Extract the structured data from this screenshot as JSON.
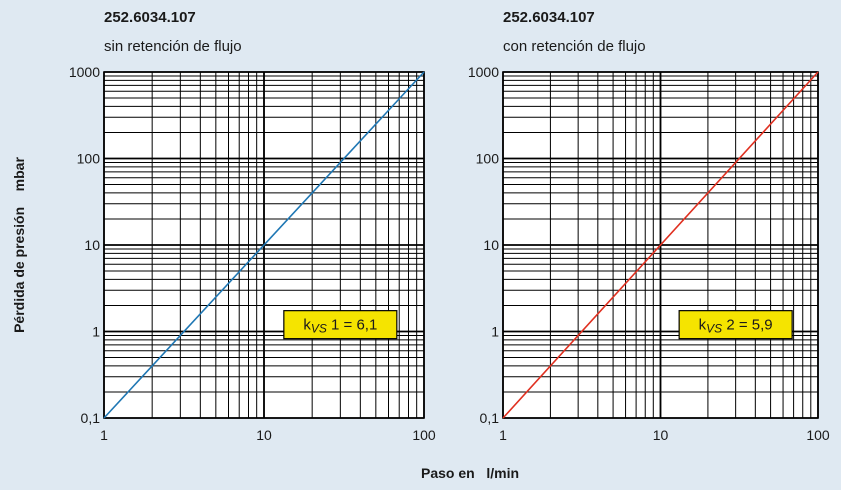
{
  "xlabel": "Paso en   l/min",
  "ylabel": "Pérdida de presión    mbar",
  "chart_data": [
    {
      "type": "line",
      "title": "252.6034.107",
      "subtitle": "sin retención de flujo",
      "xscale": "log",
      "yscale": "log",
      "xlim": [
        1,
        100
      ],
      "ylim": [
        0.1,
        1000
      ],
      "xticks": [
        "1",
        "10",
        "100"
      ],
      "yticks": [
        "0,1",
        "1",
        "10",
        "100",
        "1000"
      ],
      "grid": true,
      "series": [
        {
          "x": [
            1,
            100
          ],
          "y": [
            0.1,
            1000
          ],
          "color": "#1f77b4"
        }
      ],
      "annotation": {
        "k": "k",
        "sub": "VS",
        "text": " 1 = 6,1",
        "bg": "#f5e400",
        "at": [
          30,
          1.2
        ]
      }
    },
    {
      "type": "line",
      "title": "252.6034.107",
      "subtitle": "con retención de flujo",
      "xscale": "log",
      "yscale": "log",
      "xlim": [
        1,
        100
      ],
      "ylim": [
        0.1,
        1000
      ],
      "xticks": [
        "1",
        "10",
        "100"
      ],
      "yticks": [
        "0,1",
        "1",
        "10",
        "100",
        "1000"
      ],
      "grid": true,
      "series": [
        {
          "x": [
            1,
            100
          ],
          "y": [
            0.1,
            1000
          ],
          "color": "#e03020"
        }
      ],
      "annotation": {
        "k": "k",
        "sub": "VS",
        "text": " 2 = 5,9",
        "bg": "#f5e400",
        "at": [
          30,
          1.2
        ]
      }
    }
  ]
}
